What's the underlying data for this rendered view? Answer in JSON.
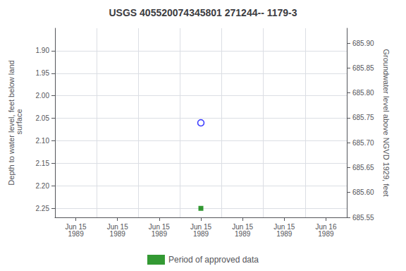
{
  "chart_data": {
    "type": "scatter",
    "title": "USGS 405520074345801 271244-- 1179-3",
    "ylabel": "Depth to water level, feet below land\n surface",
    "y2label": "Groundwater level above NGVD 1929, feet",
    "categories": [
      "Jun 15\n1989",
      "Jun 15\n1989",
      "Jun 15\n1989",
      "Jun 15\n1989",
      "Jun 15\n1989",
      "Jun 15\n1989",
      "Jun 16\n1989"
    ],
    "series": [
      {
        "color": "blue",
        "marker": "circle",
        "values": [
          null,
          null,
          null,
          2.06,
          null,
          null,
          null
        ]
      },
      {
        "name": "Period of approved data",
        "color": "#008000",
        "marker": "square",
        "values": [
          null,
          null,
          null,
          2.25,
          null,
          null,
          null
        ]
      }
    ],
    "ylim": [
      2.27,
      1.85
    ],
    "yticks": [
      {
        "value": 1.9,
        "label": "1.90"
      },
      1.95,
      {
        "value": 2,
        "label": "2.00"
      },
      2.05,
      {
        "value": 2.1,
        "label": "2.10"
      },
      2.15,
      {
        "value": 2.2,
        "label": "2.20"
      },
      2.25
    ],
    "y2lim": [
      685.55,
      685.93
    ],
    "y2ticks": [
      685.55,
      {
        "value": 685.6,
        "label": "685.60"
      },
      685.65,
      {
        "value": 685.7,
        "label": "685.70"
      },
      685.75,
      {
        "value": 685.8,
        "label": "685.80"
      },
      685.85,
      {
        "value": 685.9,
        "label": "685.90"
      }
    ],
    "grid": true,
    "legend": "bottom"
  }
}
